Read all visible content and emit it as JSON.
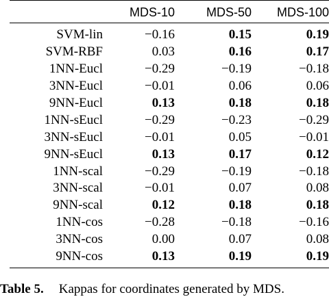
{
  "table": {
    "columns": [
      "",
      "MDS-10",
      "MDS-50",
      "MDS-100"
    ],
    "rows": [
      {
        "label": "SVM-lin",
        "v": [
          "−0.16",
          "0.15",
          "0.19"
        ],
        "bold": [
          false,
          true,
          true
        ]
      },
      {
        "label": "SVM-RBF",
        "v": [
          "0.03",
          "0.16",
          "0.17"
        ],
        "bold": [
          false,
          true,
          true
        ]
      },
      {
        "label": "1NN-Eucl",
        "v": [
          "−0.29",
          "−0.19",
          "−0.18"
        ],
        "bold": [
          false,
          false,
          false
        ]
      },
      {
        "label": "3NN-Eucl",
        "v": [
          "−0.01",
          "0.06",
          "0.06"
        ],
        "bold": [
          false,
          false,
          false
        ]
      },
      {
        "label": "9NN-Eucl",
        "v": [
          "0.13",
          "0.18",
          "0.18"
        ],
        "bold": [
          true,
          true,
          true
        ]
      },
      {
        "label": "1NN-sEucl",
        "v": [
          "−0.29",
          "−0.23",
          "−0.29"
        ],
        "bold": [
          false,
          false,
          false
        ]
      },
      {
        "label": "3NN-sEucl",
        "v": [
          "−0.01",
          "0.05",
          "−0.01"
        ],
        "bold": [
          false,
          false,
          false
        ]
      },
      {
        "label": "9NN-sEucl",
        "v": [
          "0.13",
          "0.17",
          "0.12"
        ],
        "bold": [
          true,
          true,
          true
        ]
      },
      {
        "label": "1NN-scal",
        "v": [
          "−0.29",
          "−0.19",
          "−0.18"
        ],
        "bold": [
          false,
          false,
          false
        ]
      },
      {
        "label": "3NN-scal",
        "v": [
          "−0.01",
          "0.07",
          "0.08"
        ],
        "bold": [
          false,
          false,
          false
        ]
      },
      {
        "label": "9NN-scal",
        "v": [
          "0.12",
          "0.18",
          "0.18"
        ],
        "bold": [
          true,
          true,
          true
        ]
      },
      {
        "label": "1NN-cos",
        "v": [
          "−0.28",
          "−0.18",
          "−0.16"
        ],
        "bold": [
          false,
          false,
          false
        ]
      },
      {
        "label": "3NN-cos",
        "v": [
          "0.00",
          "0.07",
          "0.08"
        ],
        "bold": [
          false,
          false,
          false
        ]
      },
      {
        "label": "9NN-cos",
        "v": [
          "0.13",
          "0.19",
          "0.19"
        ],
        "bold": [
          true,
          true,
          true
        ]
      }
    ]
  },
  "caption": {
    "label": "Table 5.",
    "text": "Kappas for coordinates generated by MDS."
  }
}
